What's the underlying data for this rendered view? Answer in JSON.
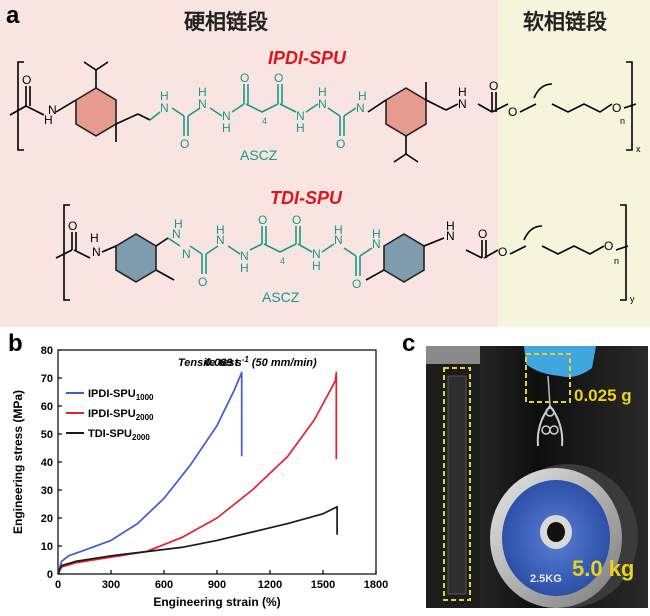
{
  "panel_a": {
    "letter": "a",
    "hard_segment_label": "硬相链段",
    "soft_segment_label": "软相链段",
    "row1": {
      "title": "IPDI-SPU",
      "chain_extender": "ASCZ",
      "subscript_x": "x",
      "subscript_n": "n",
      "subscript_4": "4"
    },
    "row2": {
      "title": "TDI-SPU",
      "chain_extender": "ASCZ",
      "subscript_y": "y",
      "subscript_n": "n",
      "subscript_4": "4"
    },
    "atoms": {
      "N": "N",
      "H": "H",
      "O": "O"
    },
    "colors": {
      "hard_bg": "#f8e4e0",
      "soft_bg": "#f6f5dc",
      "ascz": "#1a9a86",
      "ring_ipdi": "#e58f80",
      "ring_tdi": "#6a8fa6",
      "title": "#e0141c"
    }
  },
  "panel_b": {
    "letter": "b",
    "annotation_prefix": "Tensile test",
    "annotation_rate": "0.069 s",
    "annotation_exp": "-1",
    "annotation_suffix": " (50 mm/min)"
  },
  "panel_c": {
    "letter": "c",
    "mass_top": "0.025 g",
    "mass_bottom": "5.0 kg",
    "plate_label": "2.5KG"
  },
  "chart_data": {
    "type": "line",
    "xlabel": "Engineering strain (%)",
    "ylabel": "Engineering stress (MPa)",
    "xlim": [
      0,
      1800
    ],
    "ylim": [
      0,
      80
    ],
    "xticks": [
      0,
      300,
      600,
      900,
      1200,
      1500,
      1800
    ],
    "yticks": [
      0,
      10,
      20,
      30,
      40,
      50,
      60,
      70,
      80
    ],
    "legend_position": "top-left",
    "series": [
      {
        "name": "IPDI-SPU",
        "name_sub": "1000",
        "color": "#3c5bd8",
        "x": [
          0,
          20,
          60,
          150,
          300,
          450,
          600,
          750,
          900,
          1000,
          1040,
          1040
        ],
        "y": [
          0,
          4.5,
          6.5,
          8.5,
          12,
          18,
          27,
          39,
          53,
          66,
          72,
          42
        ]
      },
      {
        "name": "IPDI-SPU",
        "name_sub": "2000",
        "color": "#e8212a",
        "x": [
          0,
          20,
          100,
          300,
          500,
          700,
          900,
          1100,
          1300,
          1450,
          1570,
          1575,
          1575
        ],
        "y": [
          0,
          2.5,
          4,
          6,
          8,
          13,
          20,
          30,
          42,
          55,
          69,
          72,
          41
        ]
      },
      {
        "name": "TDI-SPU",
        "name_sub": "2000",
        "color": "#1a1a1a",
        "x": [
          0,
          20,
          100,
          300,
          500,
          700,
          900,
          1100,
          1300,
          1500,
          1580,
          1580
        ],
        "y": [
          0,
          3,
          4.5,
          6.5,
          8,
          9.5,
          12,
          15,
          18,
          21.5,
          24,
          14
        ]
      }
    ]
  }
}
